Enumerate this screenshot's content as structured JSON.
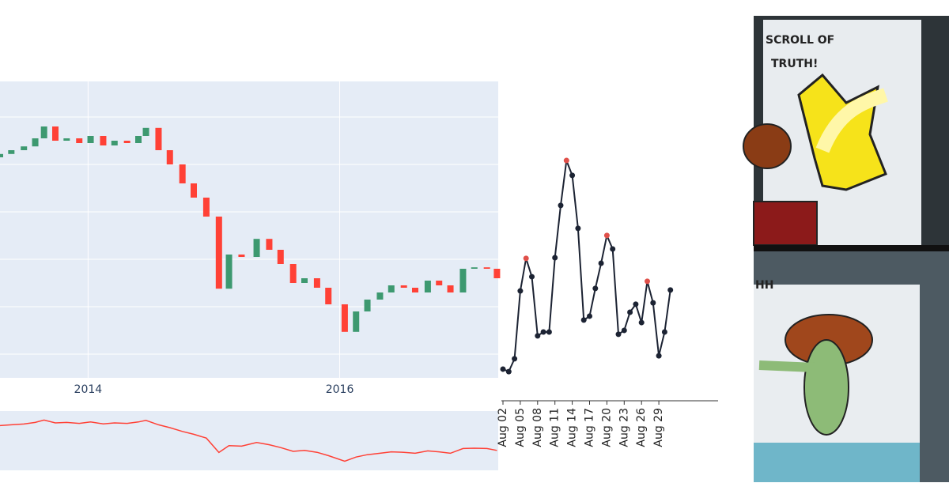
{
  "chart_data": [
    {
      "type": "candlestick",
      "x": [
        2013.3,
        2013.39,
        2013.49,
        2013.58,
        2013.65,
        2013.74,
        2013.83,
        2013.93,
        2014.02,
        2014.12,
        2014.21,
        2014.31,
        2014.4,
        2014.46,
        2014.56,
        2014.65,
        2014.75,
        2014.84,
        2014.94,
        2015.04,
        2015.12,
        2015.22,
        2015.34,
        2015.44,
        2015.53,
        2015.63,
        2015.72,
        2015.82,
        2015.91,
        2016.04,
        2016.13,
        2016.22,
        2016.32,
        2016.41,
        2016.51,
        2016.6,
        2016.7,
        2016.79,
        2016.88,
        2016.98,
        2017.07,
        2017.17,
        2017.25
      ],
      "open": [
        5.15,
        5.22,
        5.3,
        5.38,
        5.55,
        5.8,
        5.5,
        5.55,
        5.45,
        5.6,
        5.4,
        5.5,
        5.45,
        5.6,
        5.77,
        5.3,
        5.0,
        4.6,
        4.3,
        3.9,
        2.38,
        3.1,
        3.05,
        3.43,
        3.2,
        2.9,
        2.5,
        2.6,
        2.4,
        2.05,
        1.47,
        1.9,
        2.15,
        2.3,
        2.45,
        2.4,
        2.3,
        2.55,
        2.45,
        2.3,
        2.8,
        2.83,
        2.8
      ],
      "close": [
        5.22,
        5.3,
        5.38,
        5.55,
        5.8,
        5.5,
        5.55,
        5.45,
        5.6,
        5.4,
        5.5,
        5.45,
        5.6,
        5.77,
        5.3,
        5.0,
        4.6,
        4.3,
        3.9,
        2.38,
        3.1,
        3.05,
        3.43,
        3.2,
        2.9,
        2.5,
        2.6,
        2.4,
        2.05,
        1.47,
        1.9,
        2.15,
        2.3,
        2.45,
        2.4,
        2.3,
        2.55,
        2.45,
        2.3,
        2.8,
        2.83,
        2.8,
        2.6
      ],
      "increasing_color": "#3d9970",
      "decreasing_color": "#ff4136",
      "xlim": [
        2013.3,
        2017.26
      ],
      "xticks": [
        2014,
        2016
      ],
      "ylim": [
        0.5,
        6.75
      ],
      "yticks": [
        1,
        2,
        3,
        4,
        5,
        6
      ],
      "grid": true,
      "rangeslider": true
    },
    {
      "type": "line",
      "categories": [
        "Aug 02",
        null,
        null,
        "Aug 05",
        null,
        null,
        "Aug 08",
        null,
        null,
        "Aug 11",
        null,
        null,
        "Aug 14",
        null,
        null,
        "Aug 17",
        null,
        null,
        "Aug 20",
        null,
        null,
        "Aug 23",
        null,
        null,
        "Aug 26",
        null,
        null,
        "Aug 29",
        null,
        null
      ],
      "values": [
        4.5,
        3.4,
        9,
        38.6,
        52.8,
        44.8,
        19,
        20.7,
        20.7,
        53.1,
        75.9,
        95.5,
        89,
        65.9,
        25.9,
        27.6,
        39.7,
        50.7,
        62.8,
        56.9,
        19.7,
        21.4,
        29.3,
        32.8,
        24.8,
        42.8,
        33.4,
        10.3,
        20.7,
        39
      ],
      "color": "#1c2333",
      "point_colors": [
        "#1c2333",
        "#1c2333",
        "#1c2333",
        "#1c2333",
        "#e0504a",
        "#1c2333",
        "#1c2333",
        "#1c2333",
        "#1c2333",
        "#1c2333",
        "#1c2333",
        "#e0504a",
        "#1c2333",
        "#1c2333",
        "#1c2333",
        "#1c2333",
        "#1c2333",
        "#1c2333",
        "#e0504a",
        "#1c2333",
        "#1c2333",
        "#1c2333",
        "#1c2333",
        "#1c2333",
        "#1c2333",
        "#e0504a",
        "#1c2333",
        "#1c2333",
        "#1c2333",
        "#1c2333"
      ],
      "ylim": [
        0,
        100
      ]
    }
  ],
  "comic": {
    "caption_line1": "SCROLL OF",
    "caption_line2": "TRUTH!",
    "shout": "HH"
  }
}
